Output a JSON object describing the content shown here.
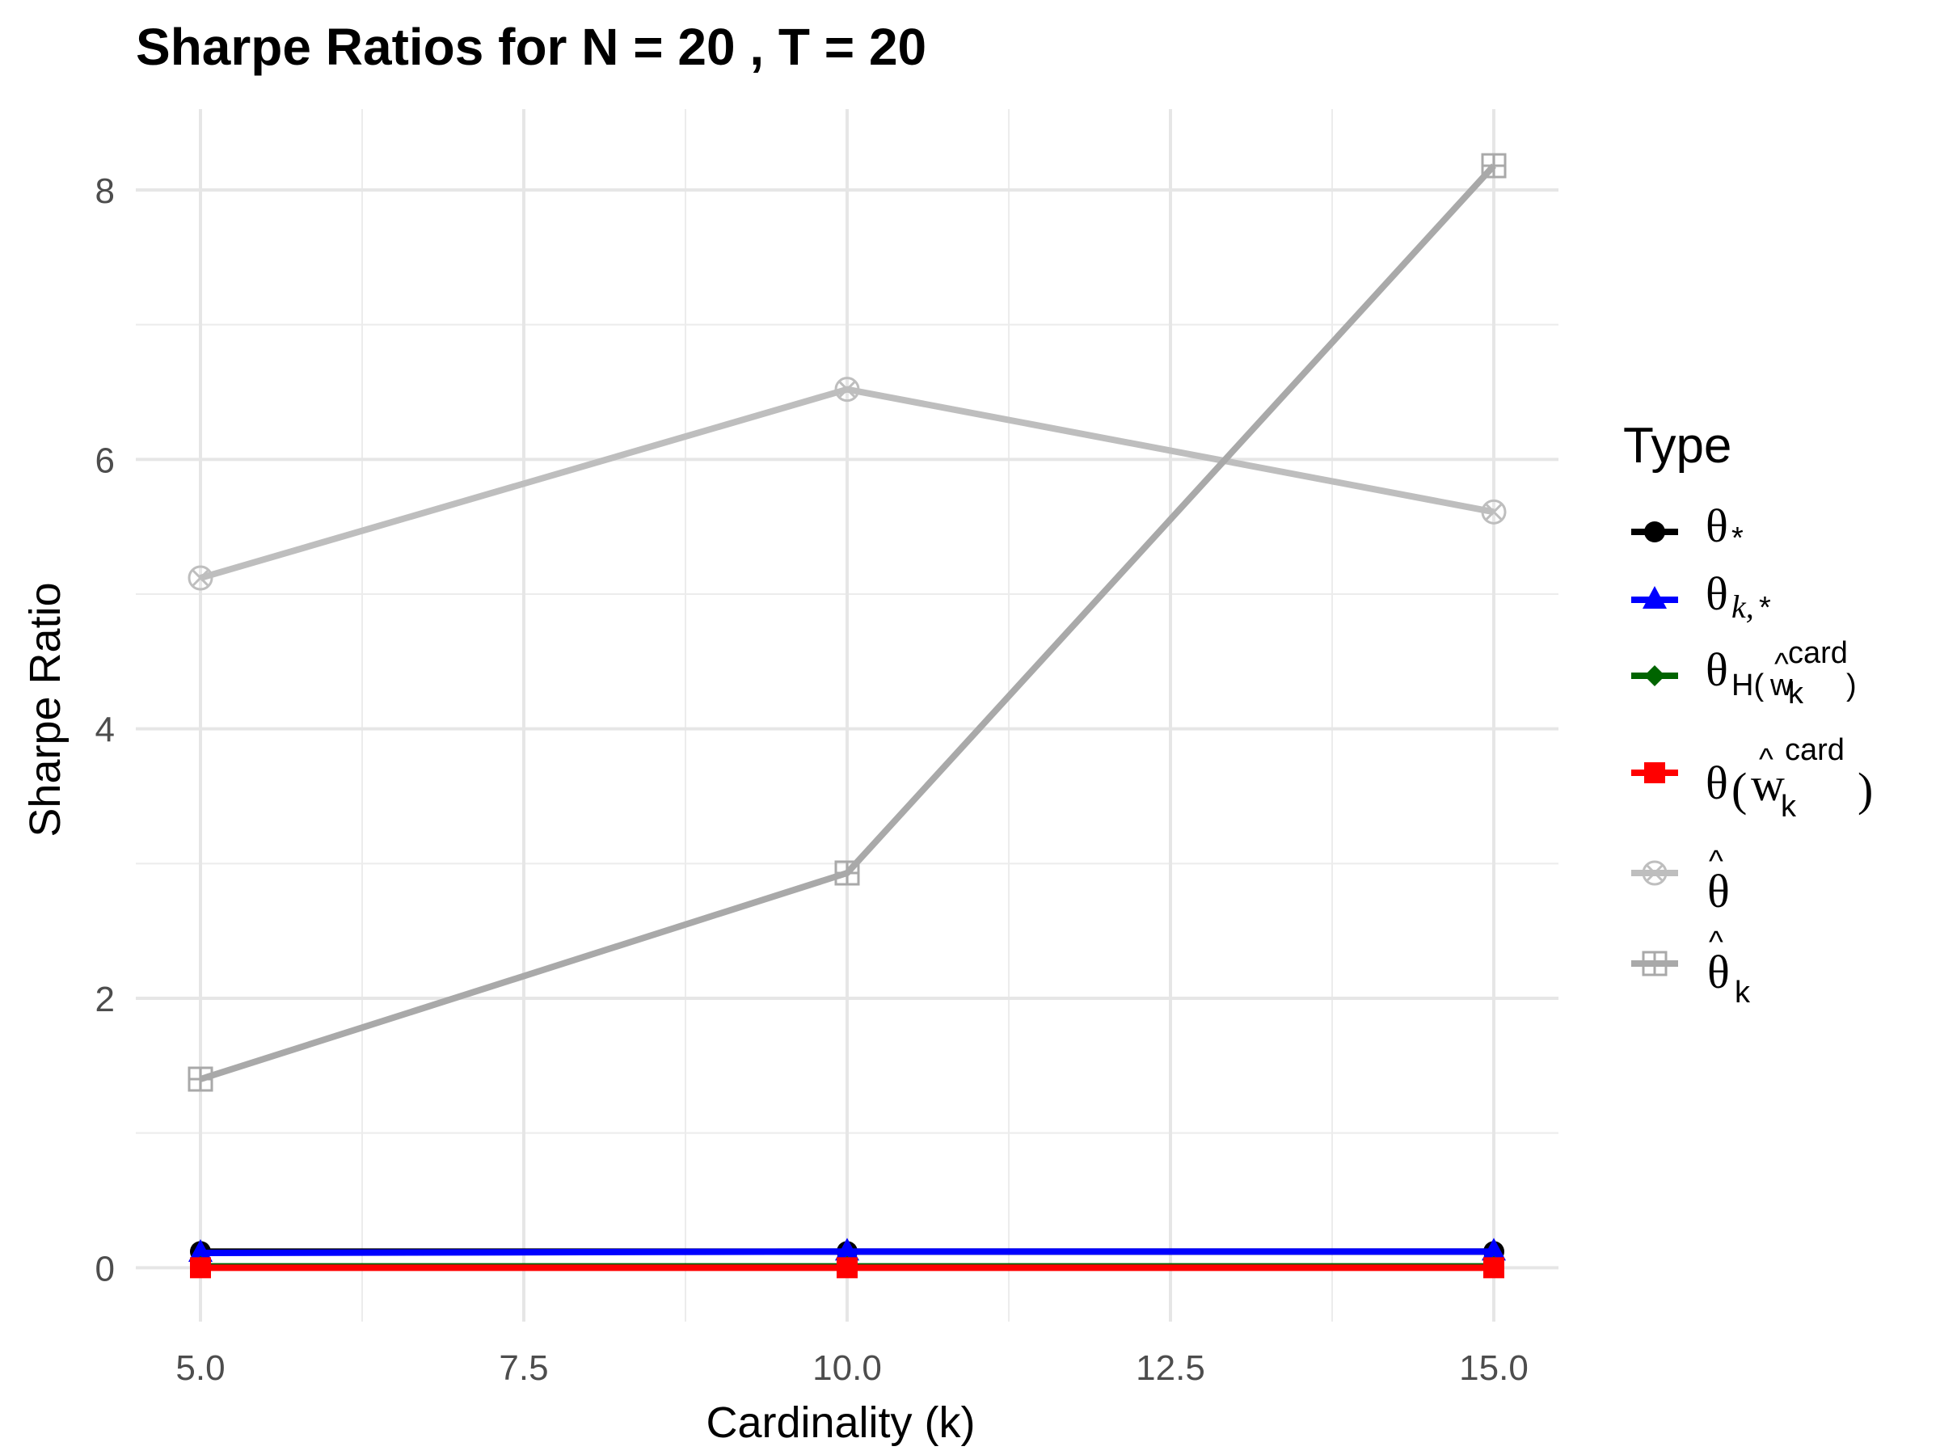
{
  "chart_data": {
    "type": "line",
    "title": "Sharpe Ratios for N = 20 , T = 20",
    "xlabel": "Cardinality (k)",
    "ylabel": "Sharpe Ratio",
    "xlim": [
      4.5,
      15.5
    ],
    "ylim": [
      -0.4,
      8.6
    ],
    "x_ticks": [
      "5.0",
      "7.5",
      "10.0",
      "12.5",
      "15.0"
    ],
    "x_tick_values": [
      5,
      7.5,
      10,
      12.5,
      15
    ],
    "y_ticks": [
      "0",
      "2",
      "4",
      "6",
      "8"
    ],
    "y_tick_values": [
      0,
      2,
      4,
      6,
      8
    ],
    "grid": true,
    "legend": {
      "title": "Type",
      "position": "right"
    },
    "x": [
      5,
      10,
      15
    ],
    "series": [
      {
        "key": "theta_star",
        "values": [
          0.12,
          0.12,
          0.12
        ],
        "color": "#000000",
        "marker": "circle"
      },
      {
        "key": "theta_k_star",
        "values": [
          0.11,
          0.12,
          0.12
        ],
        "color": "#0000ff",
        "marker": "triangle"
      },
      {
        "key": "theta_H_w_card",
        "values": [
          0.01,
          0.01,
          0.01
        ],
        "color": "#006400",
        "marker": "diamond"
      },
      {
        "key": "theta_w_card",
        "values": [
          0.0,
          0.0,
          0.0
        ],
        "color": "#ff0000",
        "marker": "square"
      },
      {
        "key": "theta_hat",
        "values": [
          5.12,
          6.52,
          5.61
        ],
        "color": "#bebebe",
        "marker": "circle-x"
      },
      {
        "key": "theta_hat_k",
        "values": [
          1.4,
          2.93,
          8.18
        ],
        "color": "#a9a9a9",
        "marker": "square-plus"
      }
    ]
  }
}
